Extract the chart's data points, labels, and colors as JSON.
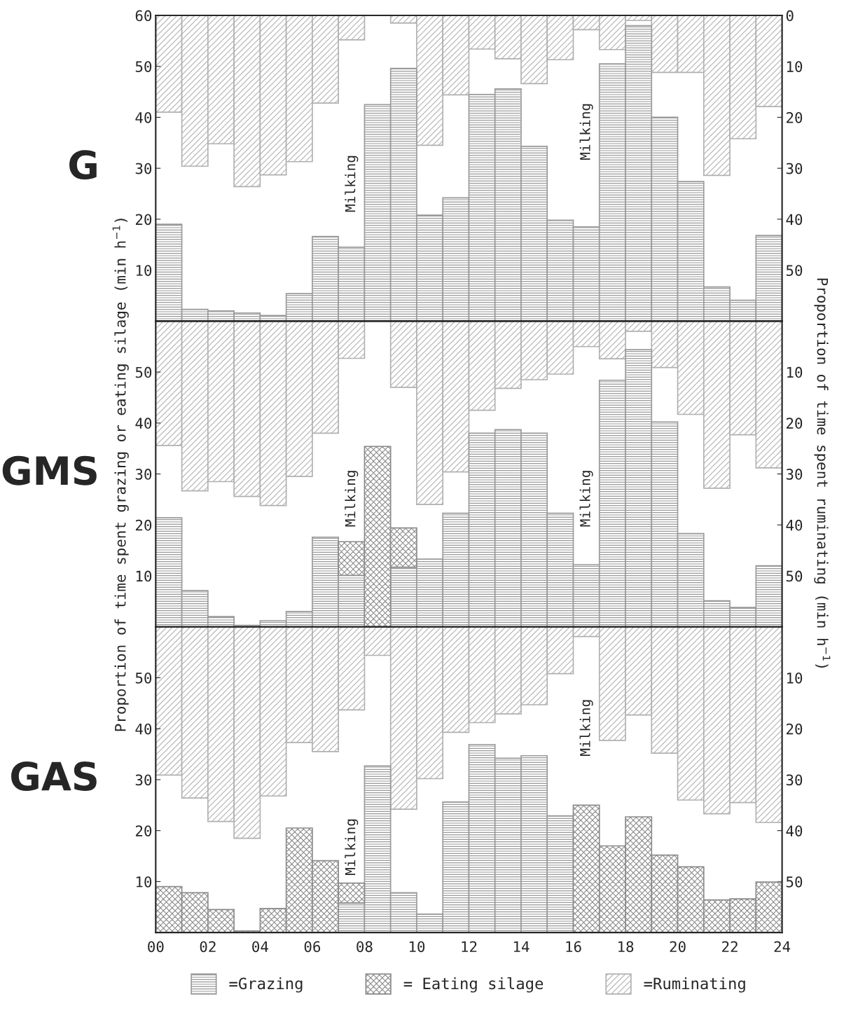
{
  "chart_data": [
    {
      "type": "bar",
      "stacked": true,
      "title": "G",
      "x": [
        0.5,
        1.5,
        2.5,
        3.5,
        4.5,
        5.5,
        6.5,
        7.5,
        8.5,
        9.5,
        10.5,
        11.5,
        12.5,
        13.5,
        14.5,
        15.5,
        16.5,
        17.5,
        18.5,
        19.5,
        20.5,
        21.5,
        22.5,
        23.5
      ],
      "xlim": [
        0,
        24
      ],
      "ylim": [
        0,
        60
      ],
      "yticks": [
        10,
        20,
        30,
        40,
        50,
        60
      ],
      "y2lim": [
        60,
        0
      ],
      "y2ticks": [
        0,
        10,
        20,
        30,
        40,
        50
      ],
      "tick_labels": "y",
      "series": [
        {
          "color": "#9a9a9a",
          "values": [
            19,
            2.3,
            2,
            1.6,
            1.1,
            5.4,
            16.6,
            14.5,
            42.5,
            49.6,
            20.8,
            24.2,
            44.5,
            45.6,
            34.3,
            19.8,
            18.5,
            50.5,
            58,
            40,
            27.4,
            6.7,
            4.1,
            16.8
          ]
        },
        {
          "color": "#b0b0b0",
          "axis": "y2",
          "values": [
            19,
            29.6,
            25.2,
            33.6,
            31.3,
            28.7,
            17.2,
            4.8,
            null,
            1.5,
            25.5,
            15.6,
            6.6,
            8.5,
            13.4,
            8.7,
            2.8,
            6.7,
            1,
            11.2,
            11.2,
            31.4,
            24.2,
            17.9
          ]
        }
      ],
      "annotations": [
        "Milking",
        "Milking"
      ]
    },
    {
      "type": "bar",
      "stacked": true,
      "title": "GMS",
      "x": [
        0.5,
        1.5,
        2.5,
        3.5,
        4.5,
        5.5,
        6.5,
        7.5,
        8.5,
        9.5,
        10.5,
        11.5,
        12.5,
        13.5,
        14.5,
        15.5,
        16.5,
        17.5,
        18.5,
        19.5,
        20.5,
        21.5,
        22.5,
        23.5
      ],
      "xlim": [
        0,
        24
      ],
      "ylim": [
        0,
        60
      ],
      "yticks": [
        10,
        20,
        30,
        40,
        50
      ],
      "y2lim": [
        60,
        0
      ],
      "y2ticks": [
        10,
        20,
        30,
        40,
        50
      ],
      "tick_labels": "y",
      "ylabel": "Proportion of time spent grazing or eating silage (min h$^{−1}$)",
      "y2label": "Proportion of time spent ruminating (min h$^{−1}$)",
      "series": [
        {
          "color": "#9a9a9a",
          "values": [
            21.4,
            7.1,
            2,
            0.3,
            1.2,
            3,
            17.6,
            10.1,
            null,
            11.7,
            13.3,
            22.3,
            38,
            38.7,
            38,
            22.3,
            12.2,
            48.4,
            54.4,
            40.2,
            18.3,
            5.1,
            3.8,
            12
          ]
        },
        {
          "color": "#8a8a8a",
          "values": [
            null,
            null,
            null,
            null,
            null,
            null,
            null,
            6.6,
            35.4,
            7.7,
            null,
            null,
            null,
            null,
            null,
            null,
            null,
            null,
            null,
            null,
            null,
            null,
            null,
            null
          ]
        },
        {
          "color": "#b0b0b0",
          "axis": "y2",
          "values": [
            24.4,
            33.3,
            31.5,
            34.4,
            36.2,
            30.5,
            22,
            7.3,
            null,
            13,
            36,
            29.6,
            17.5,
            13.2,
            11.5,
            10.4,
            5,
            7.4,
            2,
            9.1,
            18.3,
            32.8,
            22.3,
            28.8
          ]
        }
      ],
      "annotations": [
        "Milking",
        "Milking"
      ]
    },
    {
      "type": "bar",
      "stacked": true,
      "title": "GAS",
      "x": [
        0.5,
        1.5,
        2.5,
        3.5,
        4.5,
        5.5,
        6.5,
        7.5,
        8.5,
        9.5,
        10.5,
        11.5,
        12.5,
        13.5,
        14.5,
        15.5,
        16.5,
        17.5,
        18.5,
        19.5,
        20.5,
        21.5,
        22.5,
        23.5
      ],
      "xlim": [
        0,
        24
      ],
      "xticks": [
        {
          "value": 0,
          "label": "00"
        },
        {
          "value": 2,
          "label": "02"
        },
        {
          "value": 4,
          "label": "04"
        },
        {
          "value": 6,
          "label": "06"
        },
        {
          "value": 8,
          "label": "08"
        },
        10,
        12,
        14,
        16,
        18,
        20,
        22,
        24
      ],
      "ylim": [
        0,
        60
      ],
      "yticks": [
        10,
        20,
        30,
        40,
        50
      ],
      "y2lim": [
        60,
        0
      ],
      "y2ticks": [
        10,
        20,
        30,
        40,
        50
      ],
      "legend": "bottom",
      "series": [
        {
          "name": "=Grazing",
          "color": "#9a9a9a",
          "values": [
            null,
            null,
            null,
            null,
            null,
            null,
            null,
            5.8,
            32.7,
            7.8,
            3.6,
            25.6,
            36.9,
            34.2,
            34.7,
            22.9,
            null,
            null,
            null,
            null,
            null,
            null,
            null,
            null
          ]
        },
        {
          "name": "= Eating silage",
          "color": "#8a8a8a",
          "values": [
            9,
            7.8,
            4.5,
            0.3,
            4.7,
            20.5,
            14.1,
            3.9,
            null,
            null,
            null,
            null,
            null,
            null,
            null,
            null,
            25,
            17,
            22.7,
            15.2,
            12.9,
            6.4,
            6.6,
            9.9
          ]
        },
        {
          "name": "=Ruminating",
          "color": "#b0b0b0",
          "axis": "y2",
          "values": [
            29.1,
            33.6,
            38.2,
            41.5,
            33.2,
            22.7,
            24.5,
            16.3,
            5.6,
            35.8,
            29.8,
            20.7,
            18.8,
            17.1,
            15.3,
            9.2,
            1.9,
            22.3,
            17.3,
            24.8,
            34,
            36.7,
            34.5,
            38.4
          ]
        }
      ],
      "annotations": [
        "Milking",
        "Milking"
      ]
    }
  ]
}
